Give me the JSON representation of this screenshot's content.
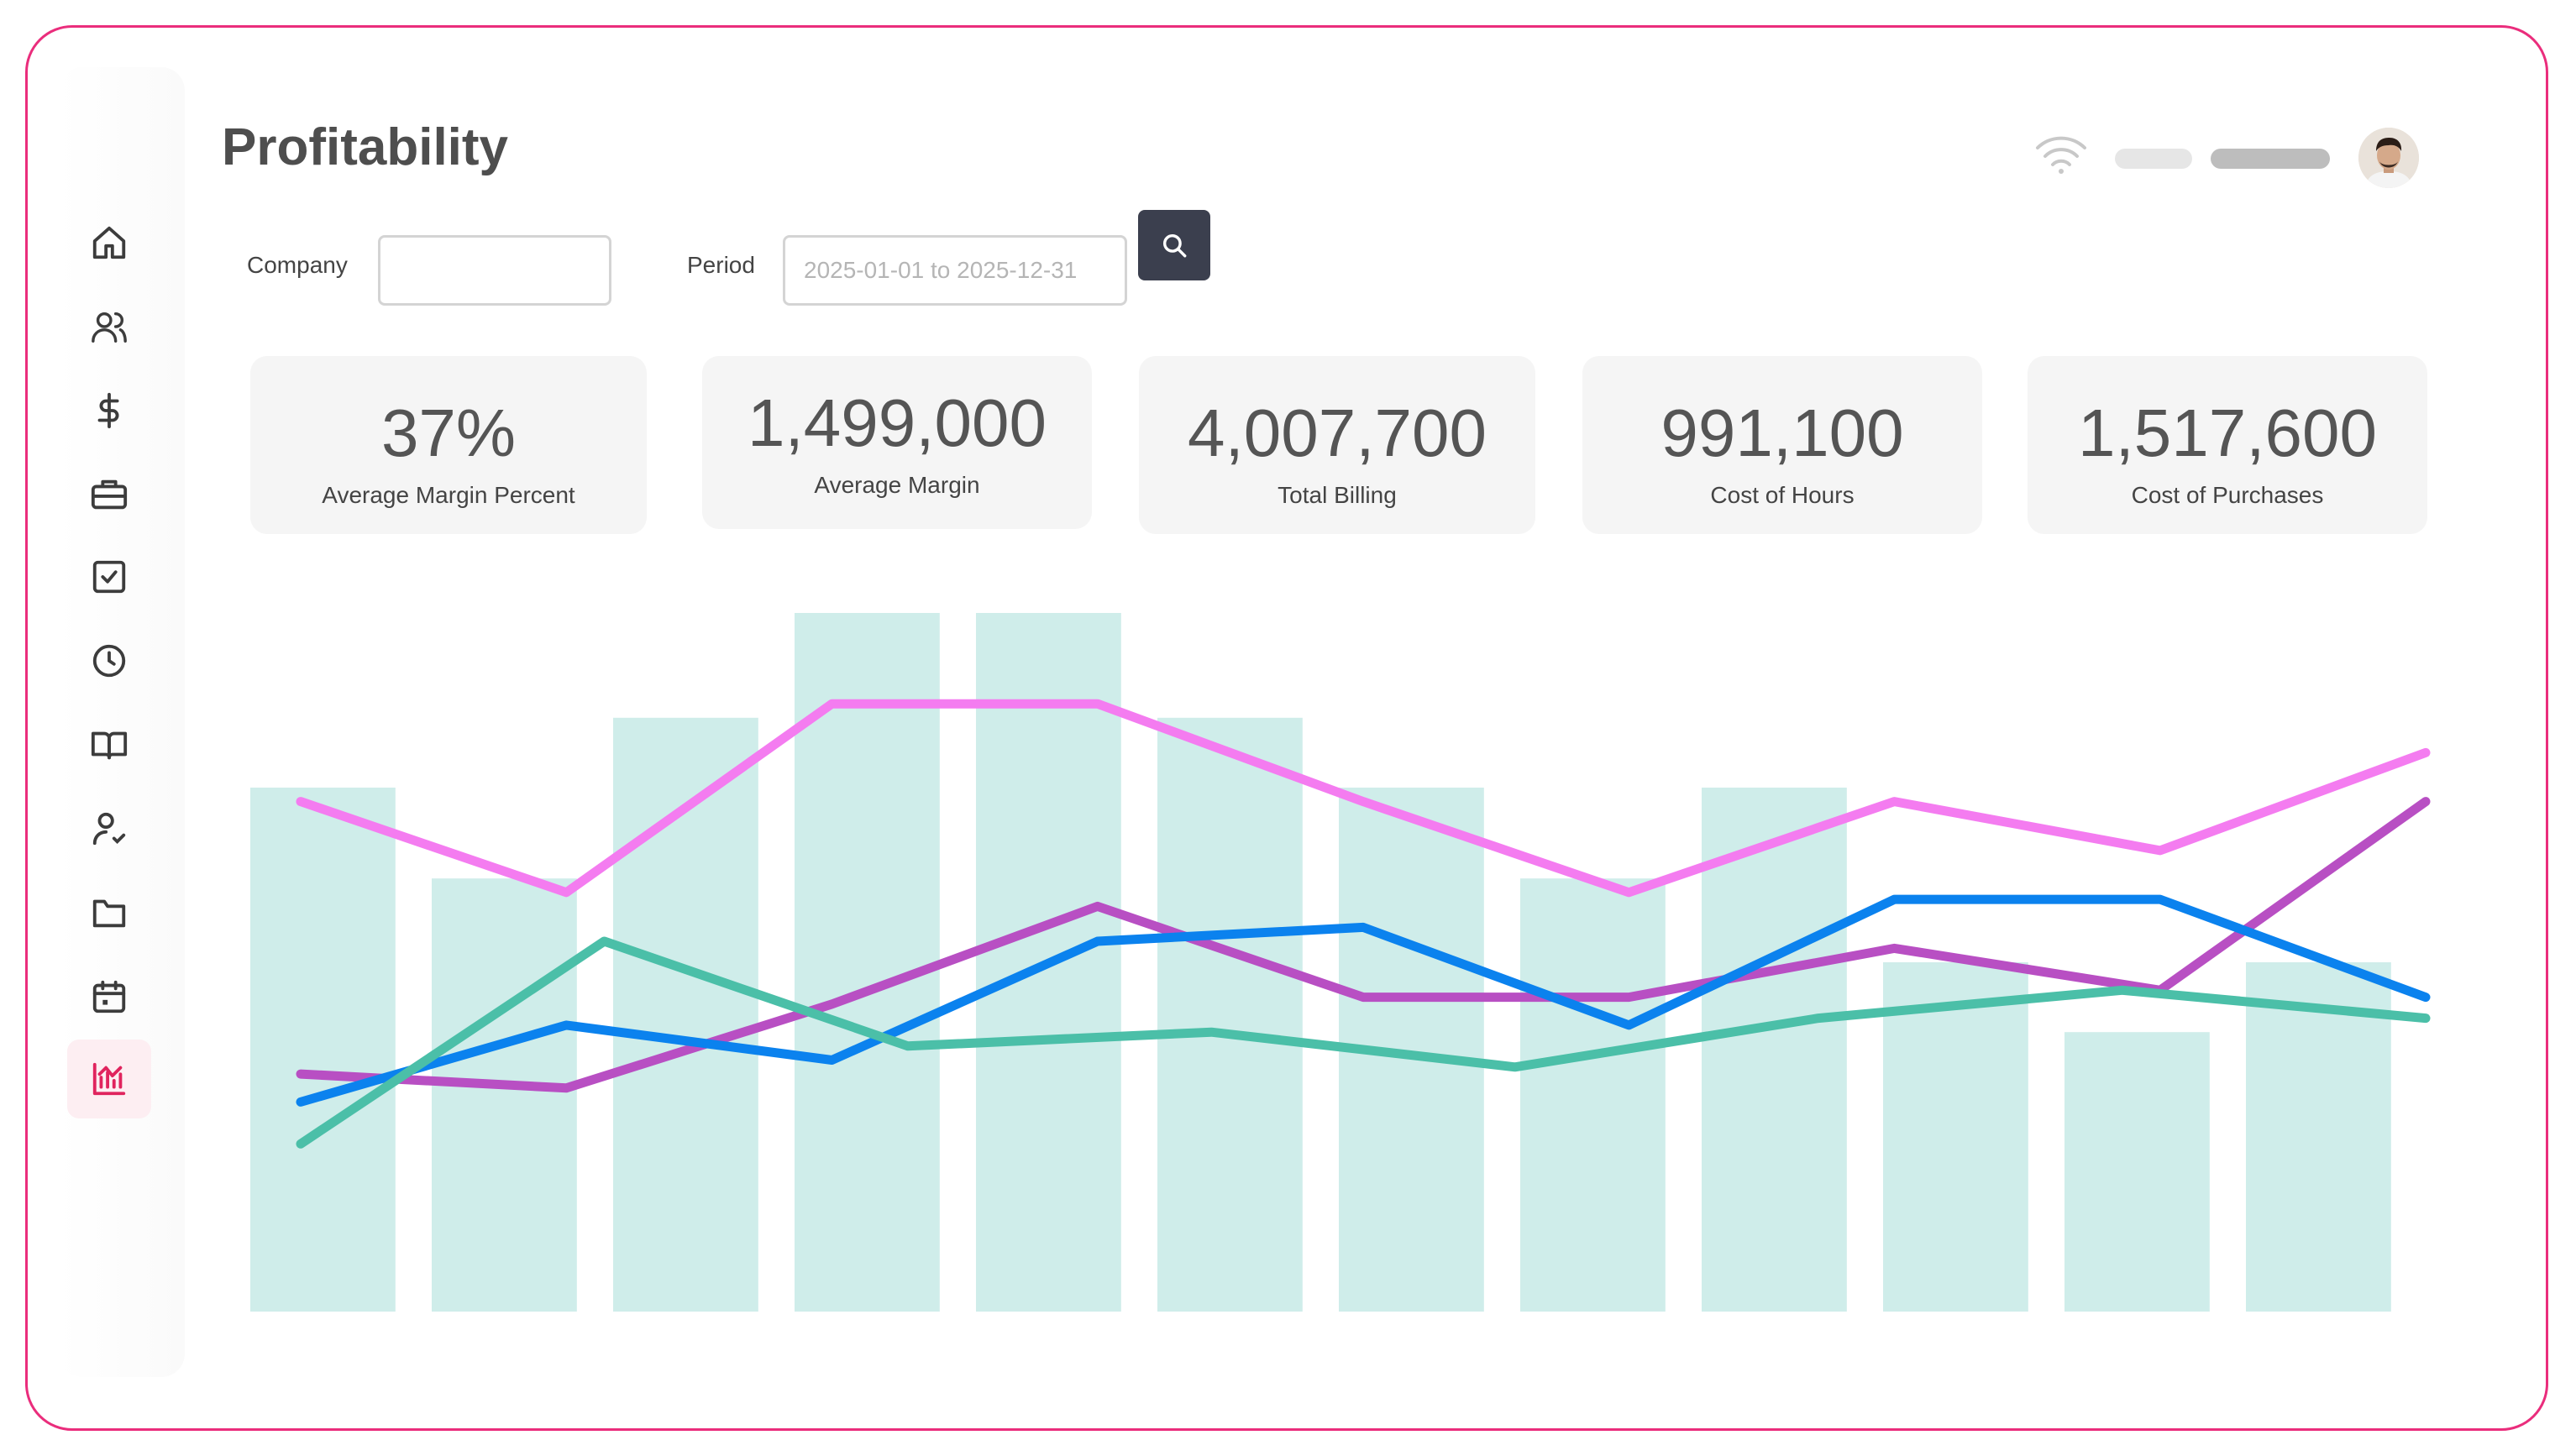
{
  "page": {
    "title": "Profitability"
  },
  "filters": {
    "company_label": "Company",
    "company_value": "",
    "period_label": "Period",
    "period_placeholder": "2025-01-01 to 2025-12-31",
    "search_icon": "search-icon"
  },
  "topbar": {
    "wifi_icon": "wifi-icon",
    "avatar": "user-avatar"
  },
  "sidebar": {
    "items": [
      {
        "icon": "home-icon"
      },
      {
        "icon": "users-icon"
      },
      {
        "icon": "dollar-icon"
      },
      {
        "icon": "briefcase-icon"
      },
      {
        "icon": "checkbox-icon"
      },
      {
        "icon": "clock-icon"
      },
      {
        "icon": "book-icon"
      },
      {
        "icon": "user-check-icon"
      },
      {
        "icon": "folder-icon"
      },
      {
        "icon": "calendar-icon"
      },
      {
        "icon": "chart-icon",
        "active": true
      }
    ]
  },
  "kpis": [
    {
      "value": "37%",
      "label": "Average Margin Percent"
    },
    {
      "value": "1,499,000",
      "label": "Average Margin"
    },
    {
      "value": "4,007,700",
      "label": "Total Billing"
    },
    {
      "value": "991,100",
      "label": "Cost of Hours"
    },
    {
      "value": "1,517,600",
      "label": "Cost of Purchases"
    }
  ],
  "colors": {
    "frame": "#ea2d7c",
    "bars": "#cfedea",
    "accent": "#e0245e",
    "button": "#3b3f4e"
  },
  "chart_data": {
    "type": "bar",
    "ylim": [
      0,
      100
    ],
    "bars": [
      75,
      62,
      85,
      100,
      100,
      85,
      75,
      62,
      75,
      50,
      40,
      50
    ],
    "series": [
      {
        "color": "#f47cf0",
        "values": [
          73,
          60,
          87,
          87,
          73,
          60,
          73,
          66,
          80
        ]
      },
      {
        "color": "#b84fc3",
        "values": [
          34,
          32,
          44,
          58,
          45,
          45,
          52,
          46,
          73
        ]
      },
      {
        "color": "#0b82ee",
        "values": [
          30,
          41,
          36,
          53,
          55,
          41,
          59,
          59,
          45
        ]
      },
      {
        "color": "#4bbfa8",
        "values": [
          24,
          53,
          38,
          40,
          35,
          42,
          46,
          42
        ]
      }
    ]
  }
}
